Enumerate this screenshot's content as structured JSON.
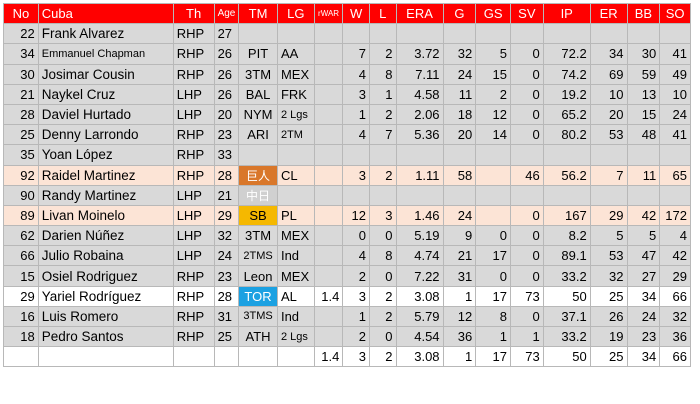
{
  "headers": [
    "No",
    "Cuba",
    "Th",
    "Age",
    "TM",
    "LG",
    "rWAR",
    "W",
    "L",
    "ERA",
    "G",
    "GS",
    "SV",
    "IP",
    "ER",
    "BB",
    "SO"
  ],
  "rows": [
    {
      "style": "gray",
      "no": "22",
      "name": "Frank Alvarez",
      "th": "RHP",
      "age": "27",
      "tm": "",
      "lg": "",
      "rwar": "",
      "w": "",
      "l": "",
      "era": "",
      "g": "",
      "gs": "",
      "sv": "",
      "ip": "",
      "er": "",
      "bb": "",
      "so": ""
    },
    {
      "style": "gray",
      "no": "34",
      "name": "Emmanuel Chapman",
      "name_small": true,
      "th": "RHP",
      "age": "26",
      "tm": "PIT",
      "lg": "AA",
      "rwar": "",
      "w": "7",
      "l": "2",
      "era": "3.72",
      "g": "32",
      "gs": "5",
      "sv": "0",
      "ip": "72.2",
      "er": "34",
      "bb": "30",
      "so": "41"
    },
    {
      "style": "gray",
      "no": "30",
      "name": "Josimar Cousin",
      "th": "RHP",
      "age": "26",
      "tm": "3TM",
      "lg": "MEX",
      "rwar": "",
      "w": "4",
      "l": "8",
      "era": "7.11",
      "g": "24",
      "gs": "15",
      "sv": "0",
      "ip": "74.2",
      "er": "69",
      "bb": "59",
      "so": "49"
    },
    {
      "style": "gray",
      "no": "21",
      "name": "Naykel Cruz",
      "th": "LHP",
      "age": "26",
      "tm": "BAL",
      "lg": "FRK",
      "rwar": "",
      "w": "3",
      "l": "1",
      "era": "4.58",
      "g": "11",
      "gs": "2",
      "sv": "0",
      "ip": "19.2",
      "er": "10",
      "bb": "13",
      "so": "10"
    },
    {
      "style": "gray",
      "no": "28",
      "name": "Daviel Hurtado",
      "th": "LHP",
      "age": "20",
      "tm": "NYM",
      "lg": "2 Lgs",
      "lg_small": true,
      "rwar": "",
      "w": "1",
      "l": "2",
      "era": "2.06",
      "g": "18",
      "gs": "12",
      "sv": "0",
      "ip": "65.2",
      "er": "20",
      "bb": "15",
      "so": "24"
    },
    {
      "style": "gray",
      "no": "25",
      "name": "Denny Larrondo",
      "th": "RHP",
      "age": "23",
      "tm": "ARI",
      "lg": "2TM",
      "lg_small": true,
      "rwar": "",
      "w": "4",
      "l": "7",
      "era": "5.36",
      "g": "20",
      "gs": "14",
      "sv": "0",
      "ip": "80.2",
      "er": "53",
      "bb": "48",
      "so": "41"
    },
    {
      "style": "gray",
      "no": "35",
      "name": "Yoan López",
      "th": "RHP",
      "age": "33",
      "tm": "",
      "lg": "",
      "rwar": "",
      "w": "",
      "l": "",
      "era": "",
      "g": "",
      "gs": "",
      "sv": "",
      "ip": "",
      "er": "",
      "bb": "",
      "so": ""
    },
    {
      "style": "pink",
      "no": "92",
      "name": "Raidel Martinez",
      "th": "RHP",
      "age": "28",
      "tm": "巨人",
      "tm_color": "orange",
      "tm_cjk": true,
      "lg": "CL",
      "rwar": "",
      "w": "3",
      "l": "2",
      "era": "1.11",
      "g": "58",
      "gs": "",
      "sv": "46",
      "ip": "56.2",
      "er": "7",
      "bb": "11",
      "so": "65"
    },
    {
      "style": "gray",
      "no": "90",
      "name": "Randy Martinez",
      "th": "LHP",
      "age": "21",
      "tm": "中日",
      "tm_color": "gray2",
      "tm_cjk": true,
      "lg": "",
      "rwar": "",
      "w": "",
      "l": "",
      "era": "",
      "g": "",
      "gs": "",
      "sv": "",
      "ip": "",
      "er": "",
      "bb": "",
      "so": ""
    },
    {
      "style": "pink",
      "no": "89",
      "name": "Livan Moinelo",
      "th": "LHP",
      "age": "29",
      "tm": "SB",
      "tm_color": "gold",
      "lg": "PL",
      "rwar": "",
      "w": "12",
      "l": "3",
      "era": "1.46",
      "g": "24",
      "gs": "",
      "sv": "0",
      "ip": "167",
      "er": "29",
      "bb": "42",
      "so": "172"
    },
    {
      "style": "gray",
      "no": "62",
      "name": "Darien Núñez",
      "th": "LHP",
      "age": "32",
      "tm": "3TM",
      "lg": "MEX",
      "rwar": "",
      "w": "0",
      "l": "0",
      "era": "5.19",
      "g": "9",
      "gs": "0",
      "sv": "0",
      "ip": "8.2",
      "er": "5",
      "bb": "5",
      "so": "4"
    },
    {
      "style": "gray",
      "no": "66",
      "name": "Julio Robaina",
      "th": "LHP",
      "age": "24",
      "tm": "2TMS",
      "tm_small": true,
      "lg": "Ind",
      "rwar": "",
      "w": "4",
      "l": "8",
      "era": "4.74",
      "g": "21",
      "gs": "17",
      "sv": "0",
      "ip": "89.1",
      "er": "53",
      "bb": "47",
      "so": "42"
    },
    {
      "style": "gray",
      "no": "15",
      "name": "Osiel Rodriguez",
      "th": "RHP",
      "age": "23",
      "tm": "Leon",
      "lg": "MEX",
      "rwar": "",
      "w": "2",
      "l": "0",
      "era": "7.22",
      "g": "31",
      "gs": "0",
      "sv": "0",
      "ip": "33.2",
      "er": "32",
      "bb": "27",
      "so": "29"
    },
    {
      "style": "white",
      "no": "29",
      "name": "Yariel Rodríguez",
      "th": "RHP",
      "age": "28",
      "tm": "TOR",
      "tm_color": "blue",
      "lg": "AL",
      "rwar": "1.4",
      "w": "3",
      "l": "2",
      "era": "3.08",
      "g": "1",
      "gs": "17",
      "sv": "73",
      "ip": "50",
      "er": "25",
      "bb": "34",
      "so": "66"
    },
    {
      "style": "gray",
      "no": "16",
      "name": "Luis Romero",
      "th": "RHP",
      "age": "31",
      "tm": "3TMS",
      "tm_small": true,
      "lg": "Ind",
      "rwar": "",
      "w": "1",
      "l": "2",
      "era": "5.79",
      "g": "12",
      "gs": "8",
      "sv": "0",
      "ip": "37.1",
      "er": "26",
      "bb": "24",
      "so": "32"
    },
    {
      "style": "gray",
      "no": "18",
      "name": "Pedro Santos",
      "th": "RHP",
      "age": "25",
      "tm": "ATH",
      "lg": "2 Lgs",
      "lg_small": true,
      "rwar": "",
      "w": "2",
      "l": "0",
      "era": "4.54",
      "g": "36",
      "gs": "1",
      "sv": "1",
      "ip": "33.2",
      "er": "19",
      "bb": "23",
      "so": "36"
    }
  ],
  "totals": {
    "rwar": "1.4",
    "w": "3",
    "l": "2",
    "era": "3.08",
    "g": "1",
    "gs": "17",
    "sv": "73",
    "ip": "50",
    "er": "25",
    "bb": "34",
    "so": "66"
  }
}
